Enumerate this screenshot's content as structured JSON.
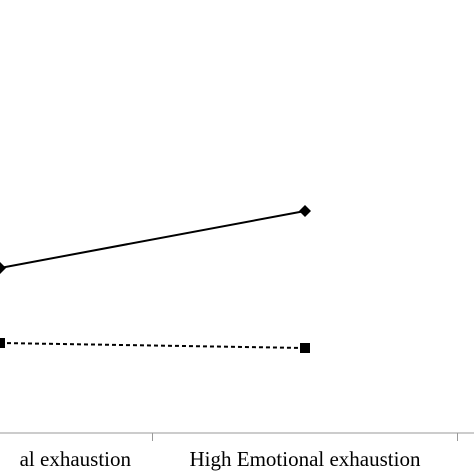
{
  "chart_data": {
    "type": "line",
    "categories": [
      "al exhaustion",
      "High Emotional exhaustion"
    ],
    "series": [
      {
        "color": "#000000",
        "dash": "solid",
        "marker": "diamond",
        "values": [
          165,
          222
        ]
      },
      {
        "color": "#000000",
        "dash": "dashed",
        "marker": "square",
        "values": [
          90,
          85
        ]
      }
    ],
    "ylim": [
      0,
      433
    ]
  }
}
